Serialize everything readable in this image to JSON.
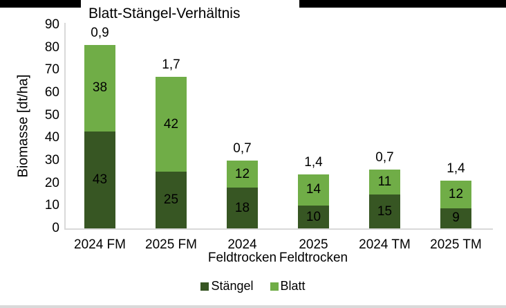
{
  "decor": {
    "header_bar_color": "#000000",
    "bottom_strip_color": "#d9d9d9"
  },
  "chart_data": {
    "type": "bar",
    "stacked": true,
    "title": "Blatt-Stängel-Verhältnis",
    "ylabel": "Biomasse [dt/ha]",
    "xlabel": "",
    "ylim": [
      0,
      90
    ],
    "ytick_step": 10,
    "yticks": [
      0,
      10,
      20,
      30,
      40,
      50,
      60,
      70,
      80,
      90
    ],
    "grid": false,
    "legend_position": "bottom",
    "axis_color": "#d9d9d9",
    "text_color": "#000000",
    "categories": [
      {
        "line1": "2024 FM",
        "line2": ""
      },
      {
        "line1": "2025 FM",
        "line2": ""
      },
      {
        "line1": "2024",
        "line2": "Feldtrocken"
      },
      {
        "line1": "2025",
        "line2": "Feldtrocken"
      },
      {
        "line1": "2024 TM",
        "line2": ""
      },
      {
        "line1": "2025 TM",
        "line2": ""
      }
    ],
    "series": [
      {
        "name": "Stängel",
        "color": "#375623",
        "values": [
          43,
          25,
          18,
          10,
          15,
          9
        ]
      },
      {
        "name": "Blatt",
        "color": "#70ad47",
        "values": [
          38,
          42,
          12,
          14,
          11,
          12
        ]
      }
    ],
    "totals": [
      81,
      67,
      30,
      24,
      26,
      21
    ],
    "ratio_labels": [
      "0,9",
      "1,7",
      "0,7",
      "1,4",
      "0,7",
      "1,4"
    ]
  }
}
